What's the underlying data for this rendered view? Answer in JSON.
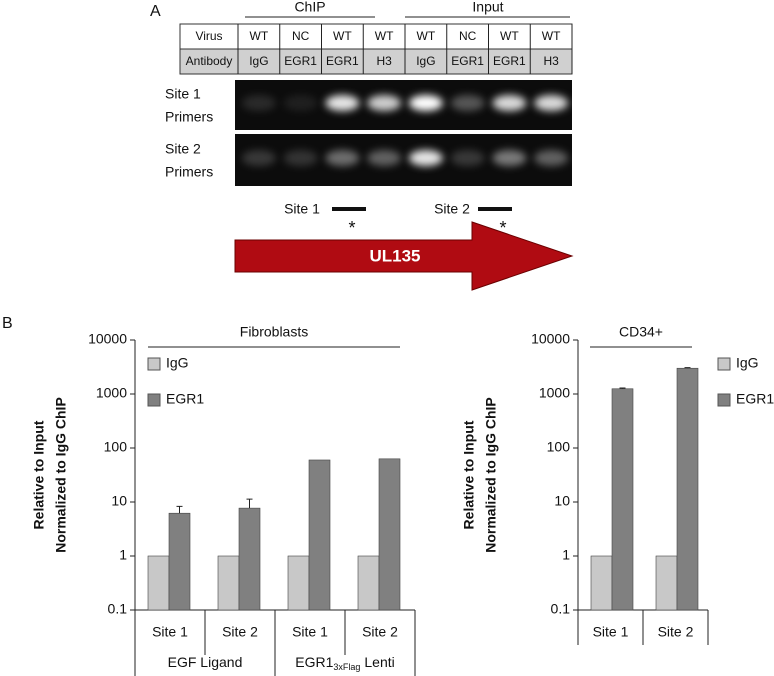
{
  "panel_labels": [
    "A",
    "B"
  ],
  "panel_a": {
    "groups": [
      "ChIP",
      "Input"
    ],
    "row_labels": [
      "Virus",
      "Antibody"
    ],
    "virus": [
      "WT",
      "NC",
      "WT",
      "WT",
      "WT",
      "NC",
      "WT",
      "WT"
    ],
    "antibody": [
      "IgG",
      "EGR1",
      "EGR1",
      "H3",
      "IgG",
      "EGR1",
      "EGR1",
      "H3"
    ],
    "gel_labels": [
      [
        "Site 1",
        "Primers"
      ],
      [
        "Site 2",
        "Primers"
      ]
    ],
    "sites": [
      "Site 1",
      "Site 2"
    ],
    "marker": "*",
    "gene": "UL135"
  },
  "chart_data": [
    {
      "type": "bar",
      "title": "Fibroblasts",
      "y_label": [
        "Relative to Input",
        "Normalized to  IgG ChIP"
      ],
      "categories": [
        "Site 1",
        "Site 2",
        "Site 1",
        "Site 2"
      ],
      "groups": [
        {
          "text": "EGF Ligand"
        },
        {
          "text": "EGR1",
          "subscript": "3xFlag",
          "suffix": "Lenti"
        }
      ],
      "series": [
        {
          "name": "IgG",
          "color": "#c8c8c8",
          "values": [
            1,
            1,
            1,
            1
          ]
        },
        {
          "name": "EGR1",
          "color": "#808080",
          "values": [
            6.2,
            7.7,
            60,
            63
          ],
          "errors": [
            2.1,
            3.6,
            null,
            null
          ]
        }
      ],
      "ylim": [
        0.1,
        10000
      ],
      "yticks": [
        0.1,
        1,
        10,
        100,
        1000,
        10000
      ],
      "log_scale": true,
      "legend": "top-left"
    },
    {
      "type": "bar",
      "title": "CD34+",
      "y_label": [
        "Relative to Input",
        "Normalized to  IgG ChIP"
      ],
      "categories": [
        "Site 1",
        "Site 2"
      ],
      "series": [
        {
          "name": "IgG",
          "color": "#c8c8c8",
          "values": [
            1,
            1
          ]
        },
        {
          "name": "EGR1",
          "color": "#808080",
          "values": [
            1250,
            3000
          ],
          "errors": [
            40,
            80
          ]
        }
      ],
      "ylim": [
        0.1,
        10000
      ],
      "yticks": [
        0.1,
        1,
        10,
        100,
        1000,
        10000
      ],
      "log_scale": true,
      "legend": "right"
    }
  ]
}
